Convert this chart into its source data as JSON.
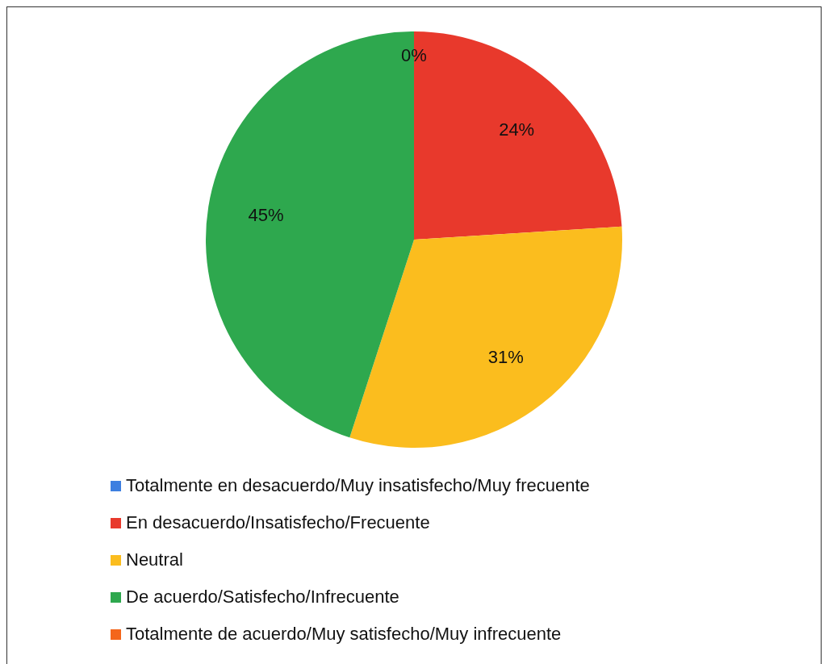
{
  "chart_data": {
    "type": "pie",
    "categories": [
      "Totalmente en desacuerdo/Muy insatisfecho/Muy frecuente",
      "En desacuerdo/Insatisfecho/Frecuente",
      "Neutral",
      "De acuerdo/Satisfecho/Infrecuente",
      "Totalmente de acuerdo/Muy satisfecho/Muy infrecuente"
    ],
    "values": [
      0,
      24,
      31,
      45,
      0
    ],
    "colors": [
      "#3d7fe0",
      "#e8392c",
      "#fbbd1e",
      "#2ea84e",
      "#f4661b"
    ],
    "value_labels": [
      "0%",
      "24%",
      "31%",
      "45%",
      null
    ],
    "legend": "bottom"
  }
}
